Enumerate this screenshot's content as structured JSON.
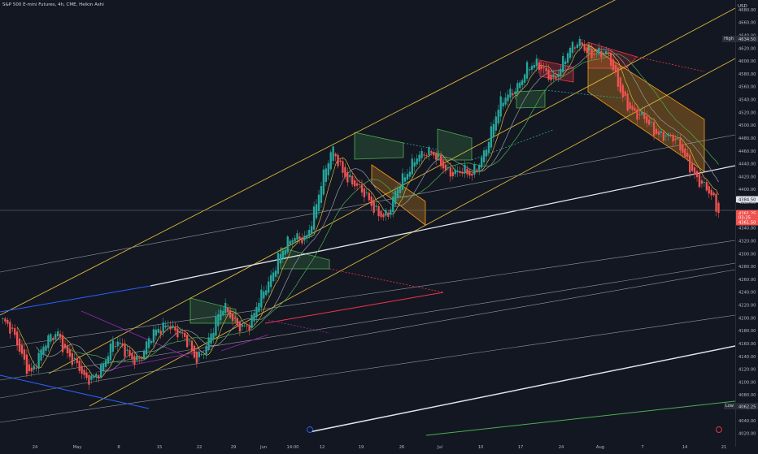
{
  "header": {
    "symbol_line": "S&P 500 E-mini Futures, 4h, CME, Heikin Ashi",
    "currency": "USD"
  },
  "price_axis": {
    "ticks": [
      "4680.00",
      "4660.00",
      "4640.00",
      "4620.00",
      "4600.00",
      "4580.00",
      "4560.00",
      "4540.00",
      "4520.00",
      "4500.00",
      "4480.00",
      "4460.00",
      "4440.00",
      "4420.00",
      "4400.00",
      "4380.00",
      "4360.00",
      "4340.00",
      "4320.00",
      "4300.00",
      "4280.00",
      "4260.00",
      "4240.00",
      "4220.00",
      "4200.00",
      "4180.00",
      "4160.00",
      "4140.00",
      "4120.00",
      "4100.00",
      "4080.00",
      "4060.00",
      "4040.00",
      "4020.00"
    ],
    "high_label": "High",
    "high_value": "4634.50",
    "low_label": "Low",
    "low_value": "4062.25",
    "current_price": "4384.50",
    "last_price": "4361.25",
    "countdown": "03:25",
    "closing_value": "4361.50"
  },
  "time_axis": {
    "ticks": [
      "24",
      "May",
      "8",
      "15",
      "22",
      "29",
      "Jun",
      "14:00",
      "12",
      "19",
      "26",
      "Jul",
      "10",
      "17",
      "24",
      "Aug",
      "7",
      "14",
      "21"
    ]
  },
  "colors": {
    "background": "#131722",
    "up": "#26a69a",
    "down": "#ef5350",
    "channel": "#d9b53a",
    "white_line": "#e0e3eb",
    "grey_line": "#9598a1",
    "blue_line": "#2962ff",
    "red_line": "#f23645",
    "green_line": "#4caf50",
    "magenta_line": "#9c27b0",
    "pennant_green": "#4caf50",
    "pennant_orange": "#f59b1b",
    "pennant_red": "#f23645"
  },
  "chart_data": {
    "type": "candlestick",
    "title": "S&P 500 E-mini Futures, 4h, CME, Heikin Ashi",
    "ylim": [
      4012,
      4695
    ],
    "x_ticks": [
      "24",
      "May",
      "8",
      "15",
      "22",
      "29",
      "Jun",
      "14:00",
      "12",
      "19",
      "26",
      "Jul",
      "10",
      "17",
      "24",
      "Aug",
      "7",
      "14",
      "21"
    ],
    "high": 4634.5,
    "low": 4062.25,
    "last": 4361.25,
    "path_points": [
      {
        "date": "Apr 20",
        "close": 4195
      },
      {
        "date": "Apr 26",
        "close": 4120
      },
      {
        "date": "Apr 30",
        "close": 4180
      },
      {
        "date": "May 4",
        "close": 4095
      },
      {
        "date": "May 10",
        "close": 4155
      },
      {
        "date": "May 16",
        "close": 4140
      },
      {
        "date": "May 22",
        "close": 4200
      },
      {
        "date": "May 25",
        "close": 4135
      },
      {
        "date": "May 30",
        "close": 4210
      },
      {
        "date": "Jun 1",
        "close": 4185
      },
      {
        "date": "Jun 9",
        "close": 4300
      },
      {
        "date": "Jun 12",
        "close": 4330
      },
      {
        "date": "Jun 16",
        "close": 4460
      },
      {
        "date": "Jun 22",
        "close": 4390
      },
      {
        "date": "Jun 27",
        "close": 4360
      },
      {
        "date": "Jul 3",
        "close": 4460
      },
      {
        "date": "Jul 7",
        "close": 4440
      },
      {
        "date": "Jul 10",
        "close": 4415
      },
      {
        "date": "Jul 13",
        "close": 4520
      },
      {
        "date": "Jul 19",
        "close": 4590
      },
      {
        "date": "Jul 24",
        "close": 4580
      },
      {
        "date": "Jul 27",
        "close": 4630
      },
      {
        "date": "Aug 1",
        "close": 4600
      },
      {
        "date": "Aug 8",
        "close": 4510
      },
      {
        "date": "Aug 14",
        "close": 4490
      },
      {
        "date": "Aug 16",
        "close": 4440
      },
      {
        "date": "Aug 18",
        "close": 4361
      }
    ]
  }
}
